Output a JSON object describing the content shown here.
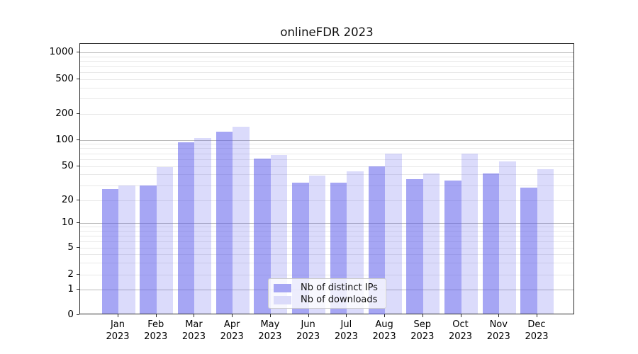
{
  "chart_data": {
    "type": "bar",
    "title": "onlineFDR 2023",
    "categories": [
      "Jan",
      "Feb",
      "Mar",
      "Apr",
      "May",
      "Jun",
      "Jul",
      "Aug",
      "Sep",
      "Oct",
      "Nov",
      "Dec"
    ],
    "category_year": "2023",
    "series": [
      {
        "name": "Nb of distinct IPs",
        "swatch": "#a6a6f4",
        "fill": "rgba(90,90,235,0.54)",
        "values": [
          27,
          30,
          93,
          125,
          61,
          32,
          32,
          50,
          35,
          34,
          41,
          28
        ]
      },
      {
        "name": "Nb of downloads",
        "swatch": "#dbdbfa",
        "fill": "rgba(90,90,235,0.22)",
        "values": [
          30,
          49,
          105,
          143,
          67,
          39,
          43,
          70,
          41,
          70,
          57,
          46
        ]
      }
    ],
    "yticks": [
      0,
      1,
      2,
      5,
      10,
      20,
      50,
      100,
      200,
      500,
      1000
    ],
    "minor_yticks": [
      3,
      4,
      6,
      7,
      8,
      9,
      30,
      40,
      60,
      70,
      80,
      90,
      300,
      400,
      600,
      700,
      800,
      900
    ],
    "yscale": "symlog",
    "ylim": [
      0,
      1250
    ],
    "xlabel": "",
    "ylabel": "",
    "grid": "horizontal",
    "legend_position": "lower center"
  },
  "colors": {
    "grid_major": "#b8b8b8",
    "grid_minor": "#e8e8e8",
    "axis": "#2b2b2b",
    "text": "#000000",
    "legend_border": "#cccccc"
  }
}
